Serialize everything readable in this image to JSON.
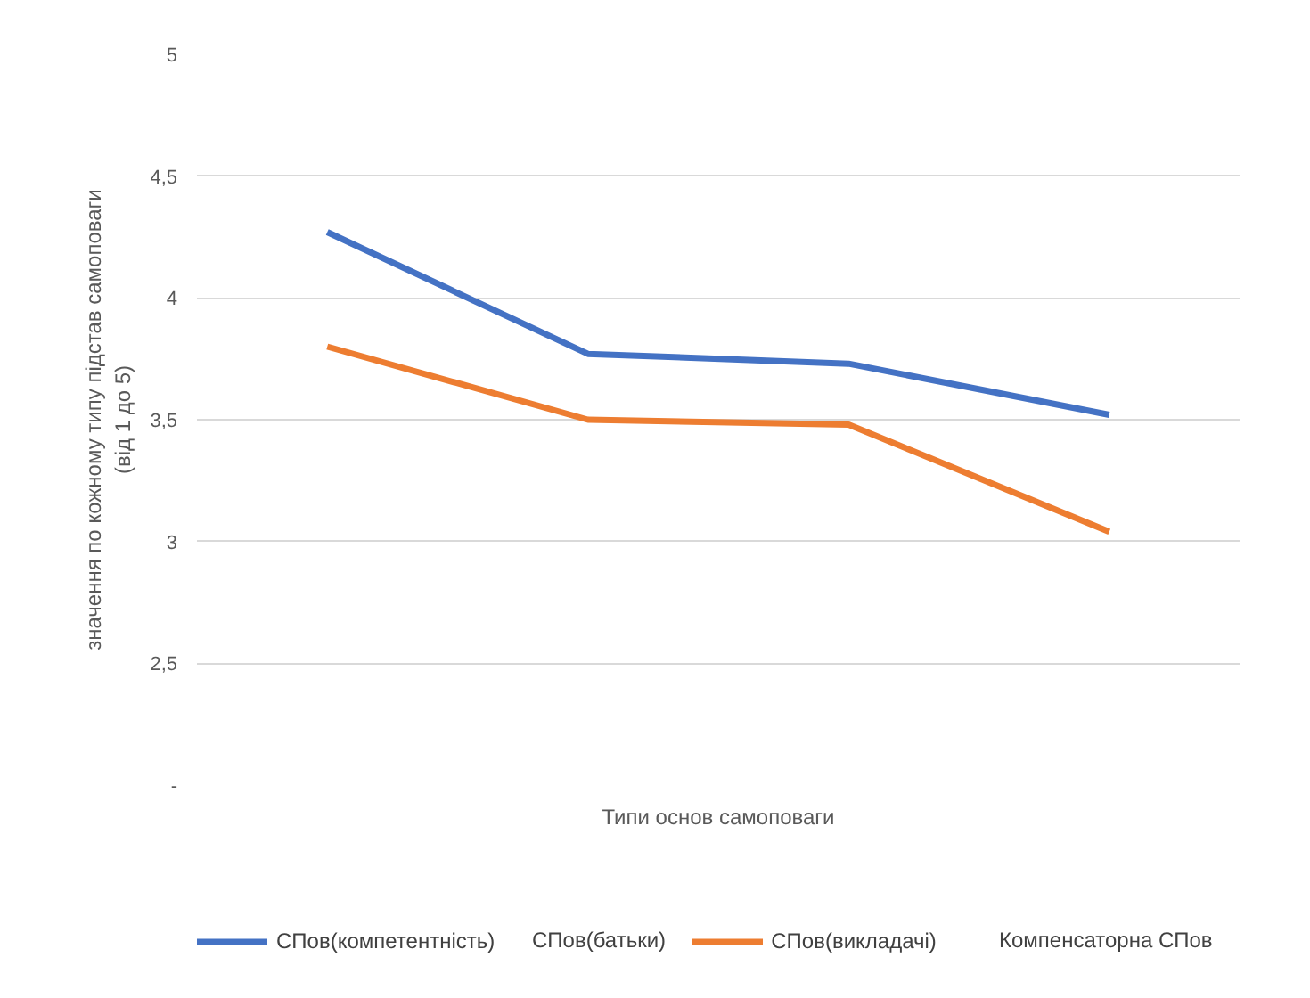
{
  "chart_data": {
    "type": "line",
    "categories": [
      null,
      null,
      null,
      null
    ],
    "series": [
      {
        "name": "СПов(компетентність)",
        "color": "#4472c4",
        "values": [
          4.27,
          3.77,
          3.73,
          3.52
        ]
      },
      {
        "name": "СПов(викладачі)",
        "color": "#ed7d31",
        "values": [
          3.8,
          3.5,
          3.48,
          3.04
        ]
      }
    ],
    "xlabel": "Типи основ самоповаги",
    "ylabel": "значення по кожному типу підстав самоповаги\n(від 1 до 5)",
    "ylim": [
      2,
      5
    ],
    "yticks": [
      5,
      {
        "value": 4.5,
        "label": "4,5"
      },
      4,
      {
        "value": 3.5,
        "label": "3,5"
      },
      3,
      {
        "value": 2.5,
        "label": "2,5"
      },
      {
        "value": 2,
        "label": "-"
      }
    ],
    "grid": "y",
    "legend": "bottom",
    "marker": "none",
    "line_style": "solid",
    "annotations": [
      "СПов(батьки)",
      "Компенсаторна СПов"
    ]
  }
}
